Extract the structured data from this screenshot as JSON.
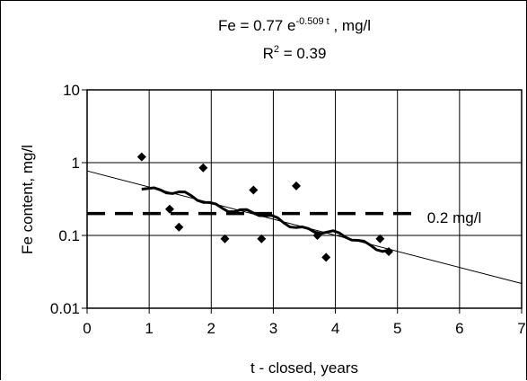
{
  "chart_data": {
    "type": "scatter",
    "title": {
      "prefix": "Fe = 0.77 e",
      "exponent": "-0.509 t",
      "suffix": " , mg/l"
    },
    "r2": {
      "label": "R",
      "sup": "2",
      "rest": " = 0.39"
    },
    "xlabel": "t - closed, years",
    "ylabel": "Fe content, mg/l",
    "xlim": [
      0,
      7
    ],
    "ylim": [
      0.01,
      10
    ],
    "y_scale": "log",
    "grid": true,
    "xticks": [
      "0",
      "1",
      "2",
      "3",
      "4",
      "5",
      "6",
      "7"
    ],
    "xtick_values": [
      0,
      1,
      2,
      3,
      4,
      5,
      6,
      7
    ],
    "yticks": [
      "0.01",
      "0.1",
      "1",
      "10"
    ],
    "ytick_values": [
      0.01,
      0.1,
      1,
      10
    ],
    "points": [
      {
        "x": 0.88,
        "y": 1.2
      },
      {
        "x": 1.33,
        "y": 0.23
      },
      {
        "x": 1.48,
        "y": 0.13
      },
      {
        "x": 1.87,
        "y": 0.85
      },
      {
        "x": 2.22,
        "y": 0.09
      },
      {
        "x": 2.68,
        "y": 0.42
      },
      {
        "x": 2.81,
        "y": 0.09
      },
      {
        "x": 3.37,
        "y": 0.48
      },
      {
        "x": 3.71,
        "y": 0.1
      },
      {
        "x": 3.85,
        "y": 0.05
      },
      {
        "x": 4.72,
        "y": 0.09
      },
      {
        "x": 4.86,
        "y": 0.06
      }
    ],
    "trendline": {
      "a": 0.77,
      "b": -0.509,
      "x_range": [
        0,
        7
      ],
      "fit_x_range": [
        0.88,
        4.86
      ]
    },
    "threshold": {
      "value": 0.2,
      "label": "0.2 mg/l"
    },
    "colors": {
      "points": "#000000",
      "lines": "#000000",
      "grid": "#000000"
    }
  }
}
